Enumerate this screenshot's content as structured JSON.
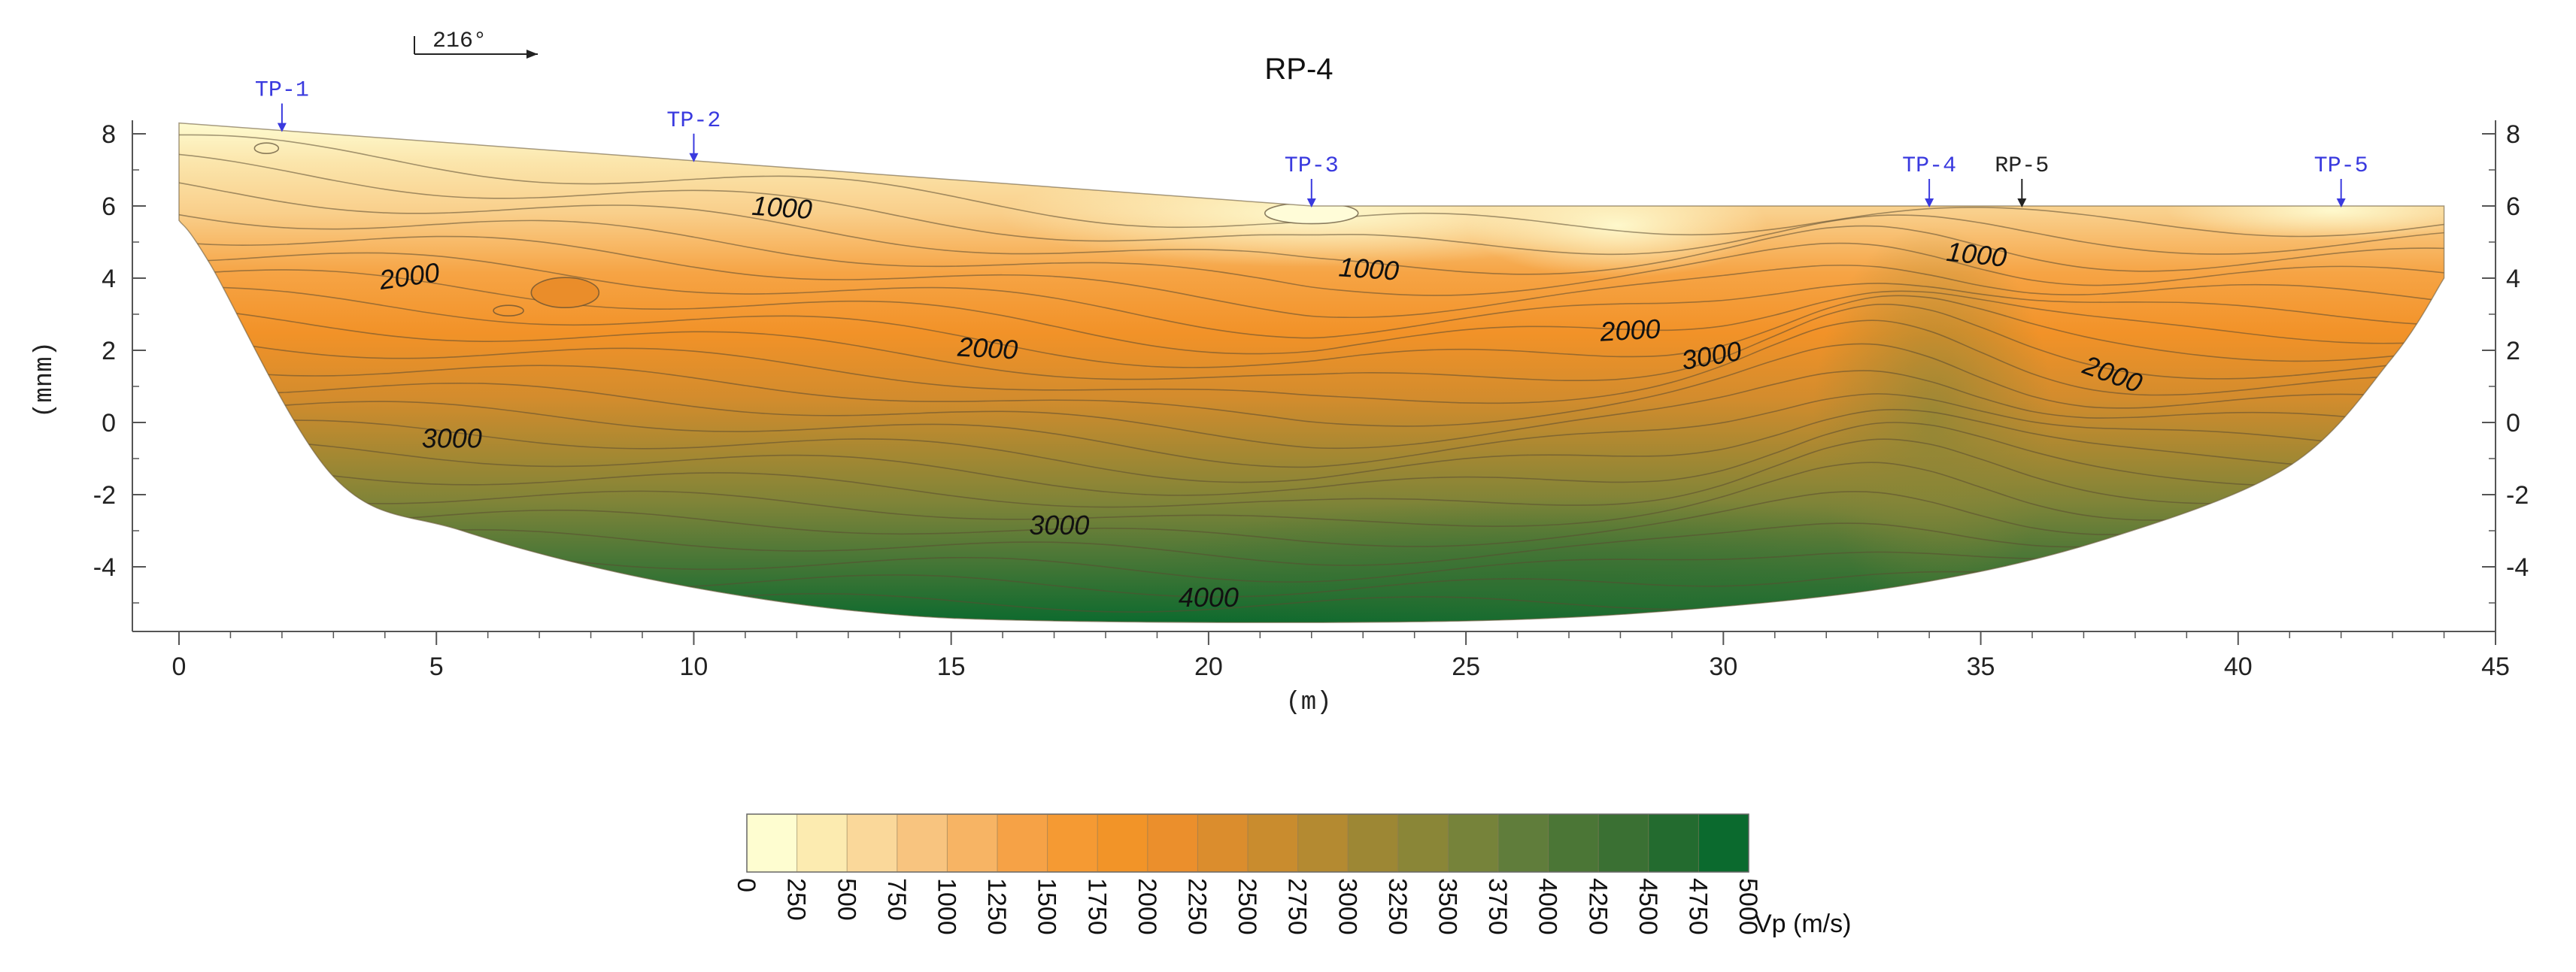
{
  "chart_data": {
    "type": "contour",
    "title": "RP-4",
    "bearing": "216°",
    "xlabel": "(m)",
    "ylabel": "(mnm)",
    "xlim": [
      0,
      45
    ],
    "ylim": [
      -5.5,
      8.5
    ],
    "x_ticks": [
      "0",
      "5",
      "10",
      "15",
      "20",
      "25",
      "30",
      "35",
      "40",
      "45"
    ],
    "y_ticks": [
      "8",
      "6",
      "4",
      "2",
      "0",
      "-2",
      "-4"
    ],
    "y_tick_values": [
      8,
      6,
      4,
      2,
      0,
      -2,
      -4
    ],
    "x_tick_values": [
      0,
      5,
      10,
      15,
      20,
      25,
      30,
      35,
      40,
      45
    ],
    "surface": [
      [
        0,
        8.3
      ],
      [
        22,
        6.0
      ],
      [
        44,
        6.0
      ]
    ],
    "bottom": [
      [
        0,
        5.6
      ],
      [
        0.6,
        4.4
      ],
      [
        3,
        -1.5
      ],
      [
        5.5,
        -3.0
      ],
      [
        9,
        -4.3
      ],
      [
        13,
        -5.2
      ],
      [
        17,
        -5.5
      ],
      [
        25,
        -5.5
      ],
      [
        30,
        -5.1
      ],
      [
        34,
        -4.4
      ],
      [
        37.5,
        -3.2
      ],
      [
        41,
        -1.2
      ],
      [
        43,
        1.8
      ],
      [
        44,
        4.0
      ]
    ],
    "markers": [
      {
        "label": "TP-1",
        "x": 2,
        "color": "blue"
      },
      {
        "label": "TP-2",
        "x": 10,
        "color": "blue"
      },
      {
        "label": "TP-3",
        "x": 22,
        "color": "blue"
      },
      {
        "label": "TP-4",
        "x": 34,
        "color": "blue"
      },
      {
        "label": "RP-5",
        "x": 35.8,
        "color": "black"
      },
      {
        "label": "TP-5",
        "x": 42,
        "color": "blue"
      }
    ],
    "contour_labels": [
      {
        "text": "1000",
        "x": 11.7,
        "y": 5.7,
        "angle": 4
      },
      {
        "text": "2000",
        "x": 4.5,
        "y": 3.8,
        "angle": -8
      },
      {
        "text": "1000",
        "x": 23.1,
        "y": 4.0,
        "angle": 4
      },
      {
        "text": "2000",
        "x": 15.7,
        "y": 1.8,
        "angle": 3
      },
      {
        "text": "2000",
        "x": 28.2,
        "y": 2.3,
        "angle": -3
      },
      {
        "text": "1000",
        "x": 34.9,
        "y": 4.4,
        "angle": 6
      },
      {
        "text": "3000",
        "x": 29.8,
        "y": 1.6,
        "angle": -10
      },
      {
        "text": "2000",
        "x": 37.5,
        "y": 1.1,
        "angle": 20
      },
      {
        "text": "3000",
        "x": 5.3,
        "y": -0.7,
        "angle": 0
      },
      {
        "text": "3000",
        "x": 17.1,
        "y": -3.1,
        "angle": 0
      },
      {
        "text": "4000",
        "x": 20.0,
        "y": -5.1,
        "angle": 0
      }
    ],
    "colorbar": {
      "title": "Vp (m/s)",
      "levels": [
        "0",
        "250",
        "500",
        "750",
        "1000",
        "1250",
        "1500",
        "1750",
        "2000",
        "2250",
        "2500",
        "2750",
        "3000",
        "3250",
        "3500",
        "3750",
        "4000",
        "4250",
        "4500",
        "4750",
        "5000"
      ],
      "colors": [
        "#fefdd0",
        "#fcebb0",
        "#fad89a",
        "#f8c47f",
        "#f7b464",
        "#f6a246",
        "#f59a33",
        "#f29428",
        "#eb8f2c",
        "#db8d2d",
        "#c98c2e",
        "#b48a31",
        "#9d8734",
        "#8a8637",
        "#76833a",
        "#607d3b",
        "#4b7636",
        "#3a7033",
        "#236b2f",
        "#0b6a2e"
      ]
    }
  }
}
